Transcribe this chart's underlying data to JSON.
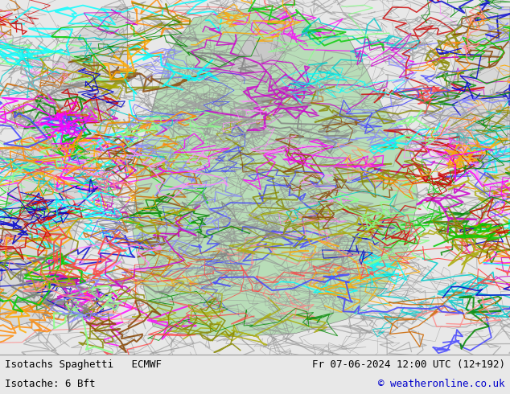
{
  "bg_color": "#e8e8e8",
  "map_area_color": "#f0f0f0",
  "bottom_bar_color": "#d0d0d0",
  "title_left": "Isotachs Spaghetti   ECMWF",
  "title_right": "Fr 07-06-2024 12:00 UTC (12+192)",
  "subtitle_left": "Isotache: 6 Bft",
  "subtitle_right": "© weatheronline.co.uk",
  "fig_width": 6.34,
  "fig_height": 4.9,
  "dpi": 100,
  "text_color": "#000000",
  "copyright_color": "#0000cc",
  "bottom_bar_height": 0.1,
  "font_size": 9,
  "land_color": "#c8e6c8",
  "ocean_color": "#dce8f0",
  "spaghetti_colors": [
    "#808080",
    "#ff00ff",
    "#00ffff",
    "#ff8800",
    "#ffff00",
    "#00ff00",
    "#ff0000",
    "#0000ff",
    "#884400",
    "#ff88ff"
  ],
  "green_land_color": "#b8ddb8"
}
